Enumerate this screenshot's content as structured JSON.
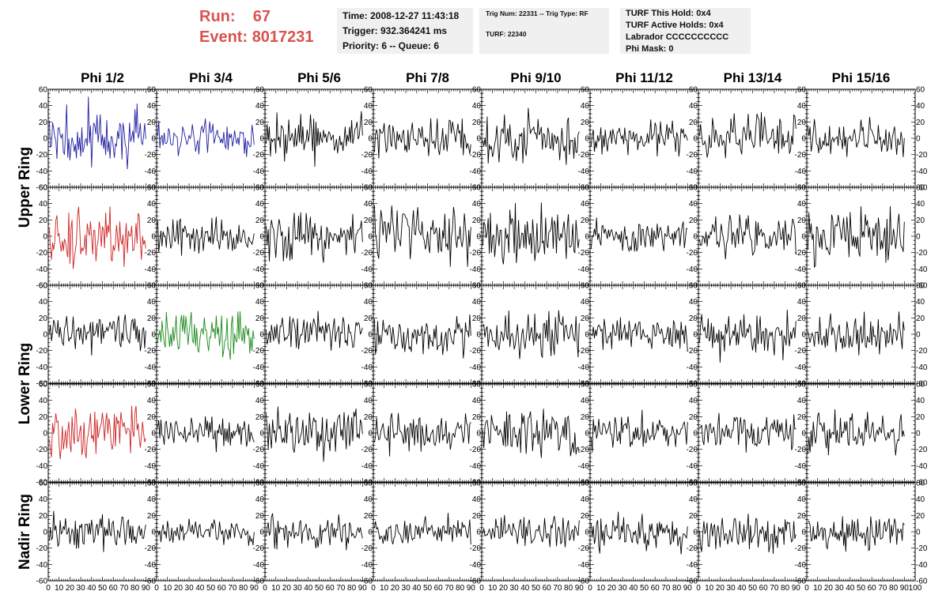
{
  "header": {
    "run_label": "Run:",
    "run_value": "67",
    "event_label": "Event:",
    "event_value": "8017231",
    "time_line": "Time: 2008-12-27 11:43:18",
    "trigger_line": "Trigger: 932.364241 ms",
    "priority_line": "Priority: 6 -- Queue: 6",
    "trig_line": "Trig Num: 22331 -- Trig Type: RF",
    "turf_line": "TURF: 22340",
    "hold_line": "TURF This Hold: 0x4",
    "active_holds_line": "TURF Active Holds: 0x4",
    "labrador_line": "Labrador CCCCCCCCCC",
    "phi_mask_line": "Phi Mask: 0"
  },
  "colors": {
    "header_red": "#d9534f",
    "info_bg": "#f0f0f0",
    "trace_default": "#000000",
    "trace_blue": "#1f1fa0",
    "trace_red": "#cc2222",
    "trace_green": "#1a8a1a"
  },
  "chart_data": {
    "type": "line",
    "columns": [
      "Phi 1/2",
      "Phi 3/4",
      "Phi 5/6",
      "Phi 7/8",
      "Phi 9/10",
      "Phi 11/12",
      "Phi 13/14",
      "Phi 15/16"
    ],
    "row_labels": [
      {
        "text": "Upper Ring",
        "rows": [
          0,
          1
        ]
      },
      {
        "text": "Lower Ring",
        "rows": [
          2,
          3
        ]
      },
      {
        "text": "Nadir Ring",
        "rows": [
          4
        ]
      }
    ],
    "xlim": [
      0,
      100
    ],
    "ylim": [
      -60,
      60
    ],
    "x_ticks": [
      0,
      10,
      20,
      30,
      40,
      50,
      60,
      70,
      80,
      90,
      100
    ],
    "y_ticks": [
      -60,
      -40,
      -20,
      0,
      20,
      40,
      60
    ],
    "trace_length": 90,
    "grid": false,
    "panels": [
      {
        "row": 0,
        "col": 0,
        "color": "blue",
        "amplitude": 22
      },
      {
        "row": 0,
        "col": 1,
        "color": "blue",
        "amplitude": 10
      },
      {
        "row": 0,
        "col": 2,
        "color": "black",
        "amplitude": 14
      },
      {
        "row": 0,
        "col": 3,
        "color": "black",
        "amplitude": 14
      },
      {
        "row": 0,
        "col": 4,
        "color": "black",
        "amplitude": 16
      },
      {
        "row": 0,
        "col": 5,
        "color": "black",
        "amplitude": 11
      },
      {
        "row": 0,
        "col": 6,
        "color": "black",
        "amplitude": 15
      },
      {
        "row": 0,
        "col": 7,
        "color": "black",
        "amplitude": 12
      },
      {
        "row": 1,
        "col": 0,
        "color": "red",
        "amplitude": 20
      },
      {
        "row": 1,
        "col": 1,
        "color": "black",
        "amplitude": 12
      },
      {
        "row": 1,
        "col": 2,
        "color": "black",
        "amplitude": 15
      },
      {
        "row": 1,
        "col": 3,
        "color": "black",
        "amplitude": 20
      },
      {
        "row": 1,
        "col": 4,
        "color": "black",
        "amplitude": 18
      },
      {
        "row": 1,
        "col": 5,
        "color": "black",
        "amplitude": 11
      },
      {
        "row": 1,
        "col": 6,
        "color": "black",
        "amplitude": 13
      },
      {
        "row": 1,
        "col": 7,
        "color": "black",
        "amplitude": 16
      },
      {
        "row": 2,
        "col": 0,
        "color": "black",
        "amplitude": 13
      },
      {
        "row": 2,
        "col": 1,
        "color": "green",
        "amplitude": 14
      },
      {
        "row": 2,
        "col": 2,
        "color": "black",
        "amplitude": 13
      },
      {
        "row": 2,
        "col": 3,
        "color": "black",
        "amplitude": 13
      },
      {
        "row": 2,
        "col": 4,
        "color": "black",
        "amplitude": 15
      },
      {
        "row": 2,
        "col": 5,
        "color": "black",
        "amplitude": 12
      },
      {
        "row": 2,
        "col": 6,
        "color": "black",
        "amplitude": 14
      },
      {
        "row": 2,
        "col": 7,
        "color": "black",
        "amplitude": 12
      },
      {
        "row": 3,
        "col": 0,
        "color": "red",
        "amplitude": 18
      },
      {
        "row": 3,
        "col": 1,
        "color": "black",
        "amplitude": 10
      },
      {
        "row": 3,
        "col": 2,
        "color": "black",
        "amplitude": 14
      },
      {
        "row": 3,
        "col": 3,
        "color": "black",
        "amplitude": 14
      },
      {
        "row": 3,
        "col": 4,
        "color": "black",
        "amplitude": 15
      },
      {
        "row": 3,
        "col": 5,
        "color": "black",
        "amplitude": 11
      },
      {
        "row": 3,
        "col": 6,
        "color": "black",
        "amplitude": 13
      },
      {
        "row": 3,
        "col": 7,
        "color": "black",
        "amplitude": 13
      },
      {
        "row": 4,
        "col": 0,
        "color": "black",
        "amplitude": 12
      },
      {
        "row": 4,
        "col": 1,
        "color": "black",
        "amplitude": 9
      },
      {
        "row": 4,
        "col": 2,
        "color": "black",
        "amplitude": 10
      },
      {
        "row": 4,
        "col": 3,
        "color": "black",
        "amplitude": 10
      },
      {
        "row": 4,
        "col": 4,
        "color": "black",
        "amplitude": 11
      },
      {
        "row": 4,
        "col": 5,
        "color": "black",
        "amplitude": 13
      },
      {
        "row": 4,
        "col": 6,
        "color": "black",
        "amplitude": 12
      },
      {
        "row": 4,
        "col": 7,
        "color": "black",
        "amplitude": 11
      }
    ]
  }
}
